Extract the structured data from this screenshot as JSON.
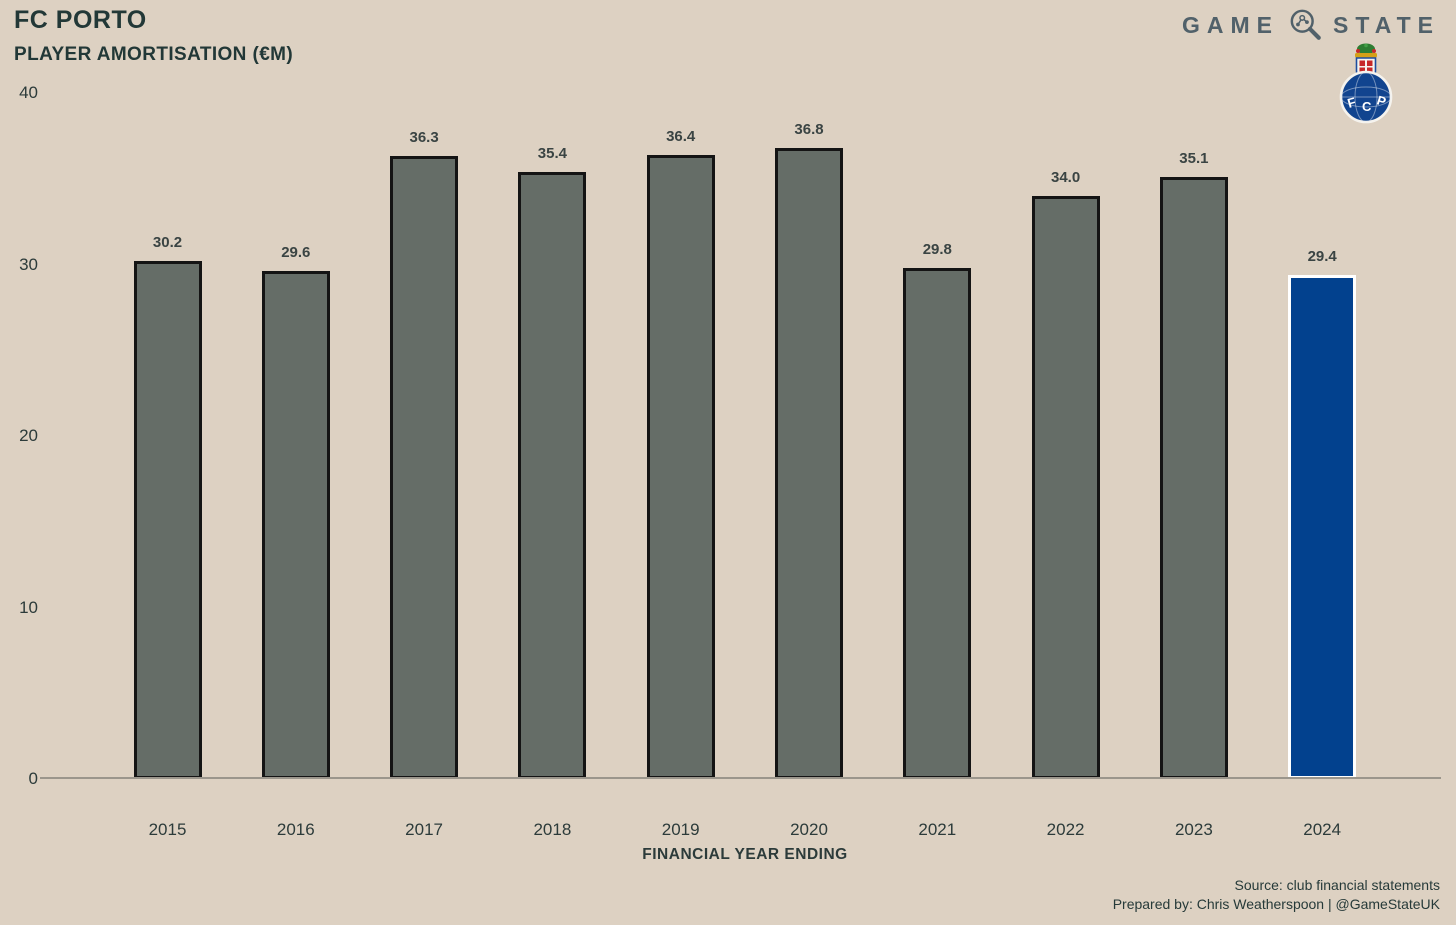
{
  "header": {
    "title": "FC PORTO",
    "subtitle": "PLAYER AMORTISATION (€M)"
  },
  "brand": {
    "name_left": "GAME",
    "name_right": "STATE",
    "icon": "magnifier-trend-icon"
  },
  "club_badge": {
    "name": "fc-porto-crest",
    "letters": [
      "F",
      "C",
      "P"
    ]
  },
  "chart_data": {
    "type": "bar",
    "title": "FC PORTO — PLAYER AMORTISATION (€M)",
    "categories": [
      "2015",
      "2016",
      "2017",
      "2018",
      "2019",
      "2020",
      "2021",
      "2022",
      "2023",
      "2024"
    ],
    "values": [
      30.2,
      29.6,
      36.3,
      35.4,
      36.4,
      36.8,
      29.8,
      34.0,
      35.1,
      29.4
    ],
    "value_labels": [
      "30.2",
      "29.6",
      "36.3",
      "35.4",
      "36.4",
      "36.8",
      "29.8",
      "34.0",
      "35.1",
      "29.4"
    ],
    "xlabel": "FINANCIAL YEAR ENDING",
    "ylabel": "",
    "ylim": [
      0,
      40
    ],
    "yticks": [
      0,
      10,
      20,
      30,
      40
    ],
    "grid": false,
    "legend_position": "none",
    "bar_color": "#656d67",
    "bar_border_color": "#141414",
    "highlight_index": 9,
    "highlight_color": "#02418e",
    "highlight_border_color": "#ffffff"
  },
  "footer": {
    "source": "Source: club financial statements",
    "prepared_by": "Prepared by: Chris Weatherspoon | @GameStateUK"
  },
  "colors": {
    "background": "#ddd1c2",
    "heading_text": "#223837",
    "axis_text": "#2c3b3a",
    "value_label_text": "#3a4443",
    "brand_text": "#51616a",
    "axis_line": "#9b968c"
  }
}
